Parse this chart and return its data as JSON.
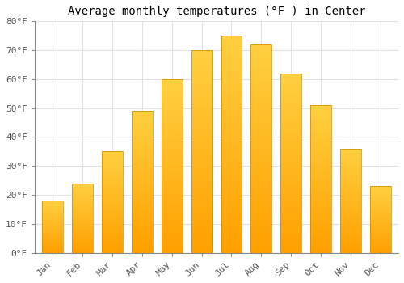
{
  "title": "Average monthly temperatures (°F ) in Center",
  "months": [
    "Jan",
    "Feb",
    "Mar",
    "Apr",
    "May",
    "Jun",
    "Jul",
    "Aug",
    "Sep",
    "Oct",
    "Nov",
    "Dec"
  ],
  "values": [
    18,
    24,
    35,
    49,
    60,
    70,
    75,
    72,
    62,
    51,
    36,
    23
  ],
  "bar_color_top": "#FFD040",
  "bar_color_bottom": "#FFA000",
  "bar_edge_color": "#CC8800",
  "ylim": [
    0,
    80
  ],
  "yticks": [
    0,
    10,
    20,
    30,
    40,
    50,
    60,
    70,
    80
  ],
  "ytick_labels": [
    "0°F",
    "10°F",
    "20°F",
    "30°F",
    "40°F",
    "50°F",
    "60°F",
    "70°F",
    "80°F"
  ],
  "background_color": "#FFFFFF",
  "grid_color": "#E0E0E8",
  "title_fontsize": 10,
  "tick_fontsize": 8,
  "font_family": "monospace"
}
